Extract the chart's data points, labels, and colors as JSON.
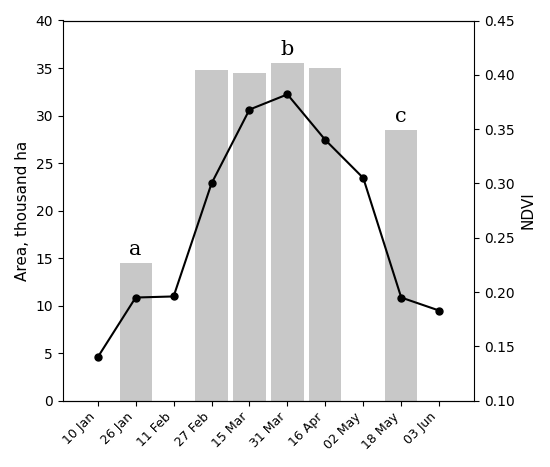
{
  "dates": [
    "10 Jan",
    "26 Jan",
    "11 Feb",
    "27 Feb",
    "15 Mar",
    "31 Mar",
    "16 Apr",
    "02 May",
    "18 May",
    "03 Jun"
  ],
  "bar_heights": [
    0,
    14.5,
    0,
    34.8,
    34.5,
    35.5,
    35.0,
    0,
    28.5,
    0
  ],
  "bar_labels": [
    "",
    "a",
    "",
    "",
    "",
    "b",
    "",
    "",
    "c",
    ""
  ],
  "ndvi_line": [
    0.14,
    0.195,
    0.196,
    0.3,
    0.368,
    0.382,
    0.34,
    0.305,
    0.195,
    0.183
  ],
  "bar_color": "#c8c8c8",
  "bar_edgecolor": "none",
  "line_color": "#000000",
  "marker_color": "#000000",
  "background_color": "#ffffff",
  "ylabel_left": "Area, thousand ha",
  "ylabel_right": "NDVI",
  "ylim_left": [
    0,
    40
  ],
  "ylim_right": [
    0.1,
    0.45
  ],
  "yticks_left": [
    0,
    5,
    10,
    15,
    20,
    25,
    30,
    35,
    40
  ],
  "yticks_right": [
    0.1,
    0.15,
    0.2,
    0.25,
    0.3,
    0.35,
    0.4,
    0.45
  ],
  "bar_label_fontsize": 15,
  "axis_label_fontsize": 11,
  "tick_fontsize": 9,
  "bar_width": 0.85,
  "line_width": 1.5,
  "marker_size": 5
}
